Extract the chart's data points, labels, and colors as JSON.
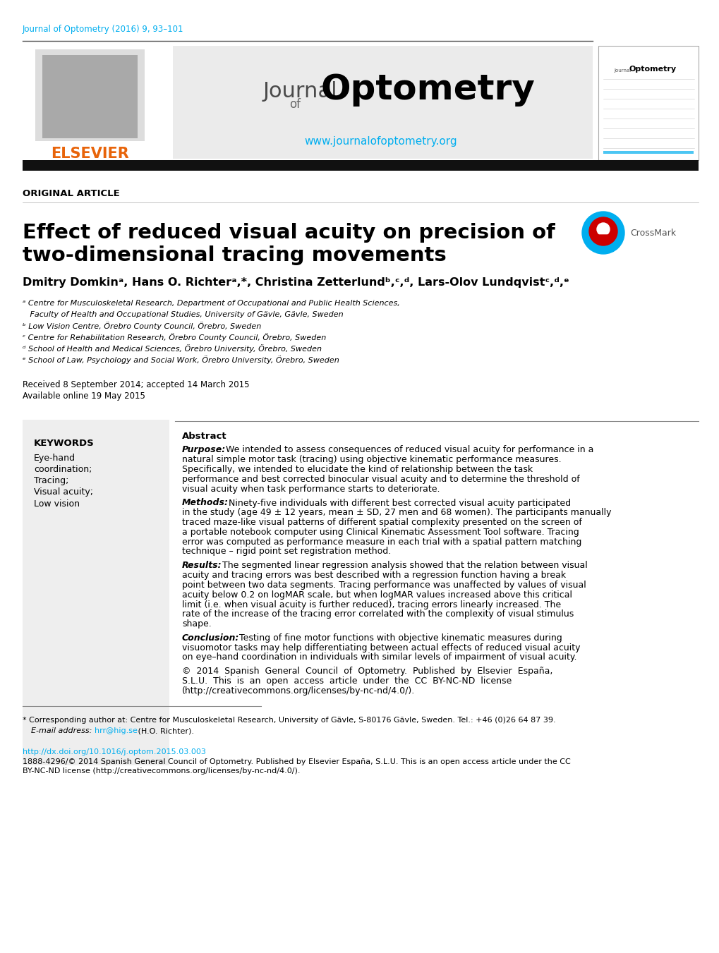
{
  "journal_citation": "Journal of Optometry (2016) 9, 93–101",
  "journal_citation_color": "#00AEEF",
  "header_url": "www.journalofoptometry.org",
  "header_url_color": "#00AEEF",
  "section_label": "ORIGINAL ARTICLE",
  "article_title_line1": "Effect of reduced visual acuity on precision of",
  "article_title_line2": "two-dimensional tracing movements",
  "authors": "Dmitry Domkinᵃ, Hans O. Richterᵃ,*, Christina Zetterlundᵇ,ᶜ,ᵈ, Lars-Olov Lundqvistᶜ,ᵈ,ᵉ",
  "affil_a": "ᵃ Centre for Musculoskeletal Research, Department of Occupational and Public Health Sciences,",
  "affil_a2": "   Faculty of Health and Occupational Studies, University of Gävle, Gävle, Sweden",
  "affil_b": "ᵇ Low Vision Centre, Örebro County Council, Örebro, Sweden",
  "affil_c": "ᶜ Centre for Rehabilitation Research, Örebro County Council, Örebro, Sweden",
  "affil_d": "ᵈ School of Health and Medical Sciences, Örebro University, Örebro, Sweden",
  "affil_e": "ᵉ School of Law, Psychology and Social Work, Örebro University, Örebro, Sweden",
  "received": "Received 8 September 2014; accepted 14 March 2015",
  "available": "Available online 19 May 2015",
  "keywords_title": "KEYWORDS",
  "keywords": [
    "Eye-hand",
    "coordination;",
    "Tracing;",
    "Visual acuity;",
    "Low vision"
  ],
  "abstract_title": "Abstract",
  "abstract_purpose_label": "Purpose:",
  "abstract_purpose": " We intended to assess consequences of reduced visual acuity for performance in a natural simple motor task (tracing) using objective kinematic performance measures. Specifically, we intended to elucidate the kind of relationship between the task performance and best corrected binocular visual acuity and to determine the threshold of visual acuity when task performance starts to deteriorate.",
  "abstract_methods_label": "Methods:",
  "abstract_methods": " Ninety-five individuals with different best corrected visual acuity participated in the study (age 49 ± 12 years, mean ± SD, 27 men and 68 women). The participants manually traced maze-like visual patterns of different spatial complexity presented on the screen of a portable notebook computer using Clinical Kinematic Assessment Tool software. Tracing error was computed as performance measure in each trial with a spatial pattern matching technique – rigid point set registration method.",
  "abstract_results_label": "Results:",
  "abstract_results": " The segmented linear regression analysis showed that the relation between visual acuity and tracing errors was best described with a regression function having a break point between two data segments. Tracing performance was unaffected by values of visual acuity below 0.2 on logMAR scale, but when logMAR values increased above this critical limit (i.e. when visual acuity is further reduced), tracing errors linearly increased. The rate of the increase of the tracing error correlated with the complexity of visual stimulus shape.",
  "abstract_conclusion_label": "Conclusion:",
  "abstract_conclusion": " Testing of fine motor functions with objective kinematic measures during visuomotor tasks may help differentiating between actual effects of reduced visual acuity on eye–hand coordination in individuals with similar levels of impairment of visual acuity.",
  "copyright_line1": "©  2014  Spanish  General  Council  of  Optometry.  Published  by  Elsevier  España,",
  "copyright_line2": "S.L.U.  This  is  an  open  access  article  under  the  CC  BY-NC-ND  license",
  "copyright_line3": "(http://creativecommons.org/licenses/by-nc-nd/4.0/).",
  "copyright_url": "http://creativecommons.org/licenses/by-nc-nd/4.0/",
  "footnote_star": "* Corresponding author at: Centre for Musculoskeletal Research, University of Gävle, S-80176 Gävle, Sweden. Tel.: +46 (0)26 64 87 39.",
  "footnote_email_label": "E-mail address:",
  "footnote_email_url": "hrr@hig.se",
  "footnote_email_rest": " (H.O. Richter).",
  "doi_text": "http://dx.doi.org/10.1016/j.optom.2015.03.003",
  "doi_color": "#00AEEF",
  "issn_line1": "1888-4296/© 2014 Spanish General Council of Optometry. Published by Elsevier España, S.L.U. This is an open access article under the CC",
  "issn_line2": "BY-NC-ND license (http://creativecommons.org/licenses/by-nc-nd/4.0/).",
  "bg_color": "#ffffff",
  "text_color": "#000000",
  "keywords_bg": "#eeeeee",
  "header_gray_bg": "#ebebeb",
  "black_bar_color": "#111111"
}
